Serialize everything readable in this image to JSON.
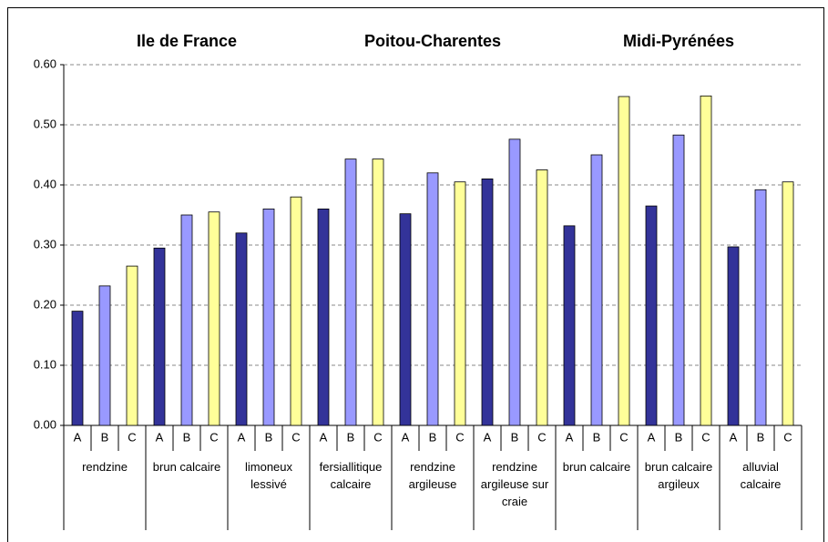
{
  "chart_data": {
    "type": "bar",
    "regions": [
      "Ile de France",
      "Poitou-Charentes",
      "Midi-Pyrénées"
    ],
    "categories": [
      "rendzine",
      "brun calcaire",
      "limoneux lessivé",
      "fersiallitique calcaire",
      "rendzine argileuse",
      "rendzine argileuse sur craie",
      "brun calcaire",
      "brun calcaire argileux",
      "alluvial calcaire"
    ],
    "series": [
      {
        "name": "A",
        "color": "#333399",
        "values": [
          0.19,
          0.295,
          0.32,
          0.36,
          0.352,
          0.41,
          0.332,
          0.365,
          0.297
        ]
      },
      {
        "name": "B",
        "color": "#9999ff",
        "values": [
          0.232,
          0.35,
          0.36,
          0.443,
          0.42,
          0.476,
          0.45,
          0.483,
          0.392
        ]
      },
      {
        "name": "C",
        "color": "#ffff99",
        "values": [
          0.265,
          0.355,
          0.38,
          0.443,
          0.405,
          0.425,
          0.547,
          0.548,
          0.405
        ]
      }
    ],
    "ylim": [
      0,
      0.6
    ],
    "yticks": [
      {
        "value": 0,
        "label": "0.00"
      },
      {
        "value": 0.1,
        "label": "0.10"
      },
      {
        "value": 0.2,
        "label": "0.20"
      },
      {
        "value": 0.3,
        "label": "0.30"
      },
      {
        "value": 0.4,
        "label": "0.40"
      },
      {
        "value": 0.5,
        "label": "0.50"
      },
      {
        "value": 0.6,
        "label": "0.60"
      }
    ],
    "grid": true
  }
}
